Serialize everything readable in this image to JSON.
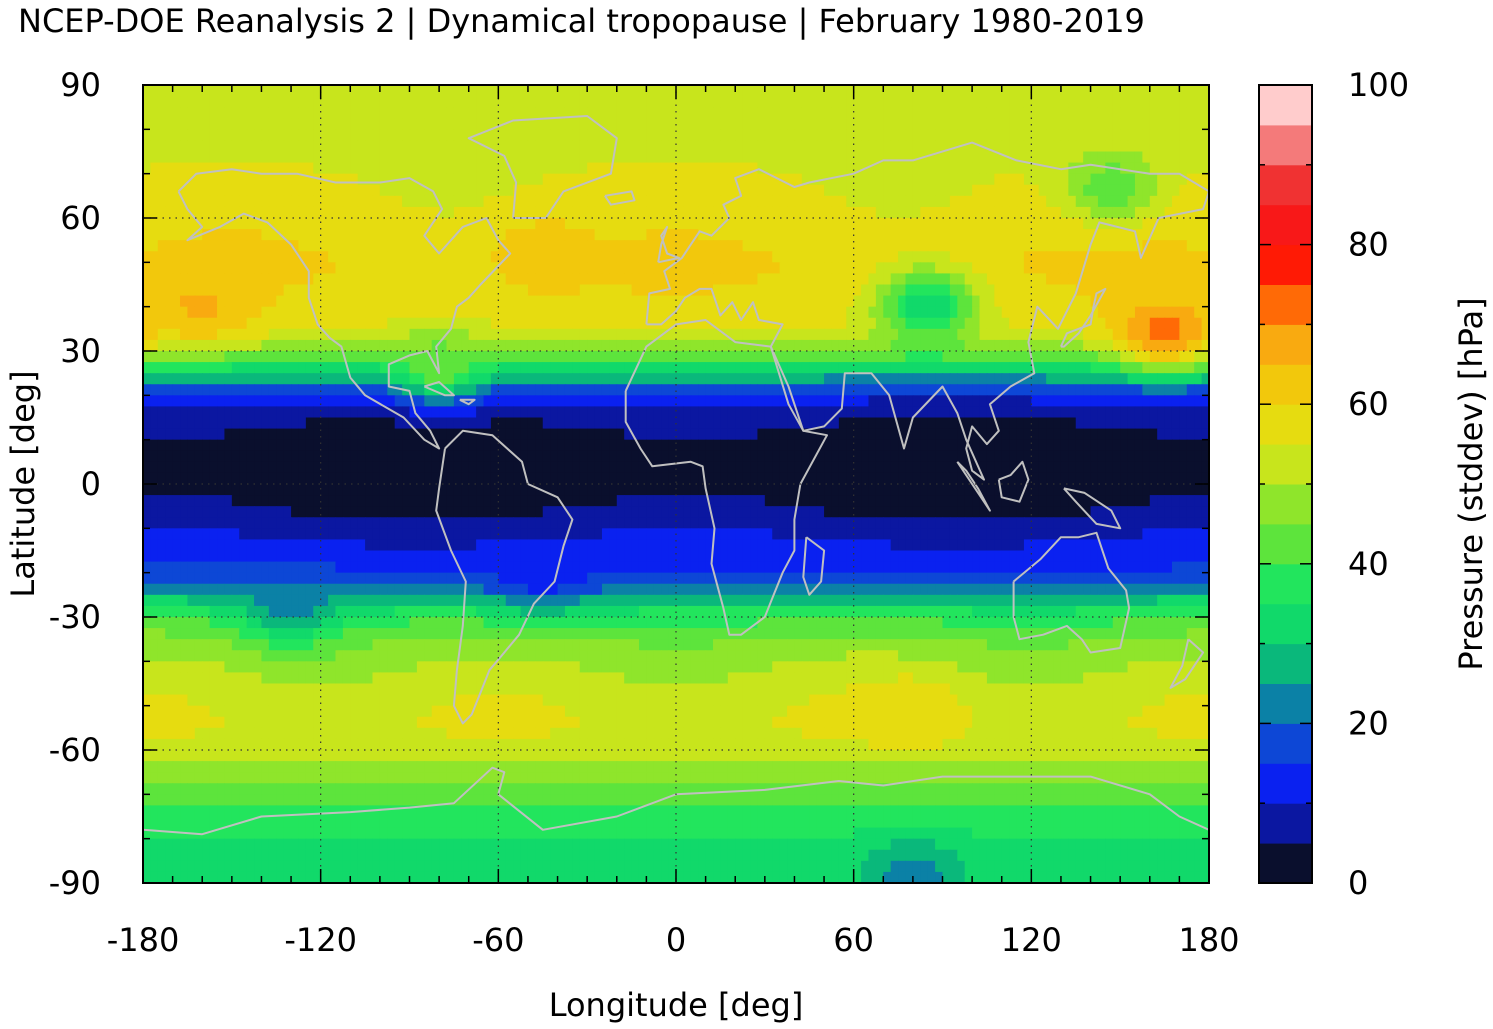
{
  "chart_data": {
    "type": "heatmap",
    "title": "NCEP-DOE Reanalysis 2 | Dynamical tropopause | February 1980-2019",
    "xlabel": "Longitude [deg]",
    "ylabel": "Latitude [deg]",
    "colorbar_label": "Pressure (stddev) [hPa]",
    "xlim": [
      -180,
      180
    ],
    "ylim": [
      -90,
      90
    ],
    "x_ticks": [
      -180,
      -120,
      -60,
      0,
      60,
      120,
      180
    ],
    "x_tick_labels": [
      "-180",
      "-120",
      "-60",
      "0",
      "60",
      "120",
      "180"
    ],
    "y_ticks": [
      90,
      60,
      30,
      0,
      -30,
      -60,
      -90
    ],
    "y_tick_labels": [
      "90",
      "60",
      "30",
      "0",
      "-30",
      "-60",
      "-90"
    ],
    "colorbar_ticks": [
      100,
      80,
      60,
      40,
      20,
      0
    ],
    "colorbar_tick_labels": [
      "100",
      "80",
      "60",
      "40",
      "20",
      "0"
    ],
    "colorbar_range": [
      0,
      100
    ],
    "grid": true,
    "coastlines": true,
    "coastline_color": "#c0c0c0",
    "colorscale": [
      {
        "from": 0,
        "to": 5,
        "color": "#0a0f2d"
      },
      {
        "from": 5,
        "to": 10,
        "color": "#0b17a1"
      },
      {
        "from": 10,
        "to": 15,
        "color": "#0a21f0"
      },
      {
        "from": 15,
        "to": 20,
        "color": "#0d47d6"
      },
      {
        "from": 20,
        "to": 25,
        "color": "#0b81a6"
      },
      {
        "from": 25,
        "to": 30,
        "color": "#0ab87b"
      },
      {
        "from": 30,
        "to": 35,
        "color": "#11d96a"
      },
      {
        "from": 35,
        "to": 40,
        "color": "#22e55d"
      },
      {
        "from": 40,
        "to": 45,
        "color": "#5de43c"
      },
      {
        "from": 45,
        "to": 50,
        "color": "#8fe52b"
      },
      {
        "from": 50,
        "to": 55,
        "color": "#c8e51c"
      },
      {
        "from": 55,
        "to": 60,
        "color": "#e6dc10"
      },
      {
        "from": 60,
        "to": 65,
        "color": "#f2c80c"
      },
      {
        "from": 65,
        "to": 70,
        "color": "#f9aa10"
      },
      {
        "from": 70,
        "to": 75,
        "color": "#ff6a06"
      },
      {
        "from": 75,
        "to": 80,
        "color": "#ff1a05"
      },
      {
        "from": 80,
        "to": 85,
        "color": "#f81818"
      },
      {
        "from": 85,
        "to": 90,
        "color": "#f03232"
      },
      {
        "from": 90,
        "to": 95,
        "color": "#f47a7a"
      },
      {
        "from": 95,
        "to": 100,
        "color": "#ffcccc"
      }
    ],
    "zonal_mean_profile": {
      "latitudes": [
        90,
        80,
        70,
        60,
        50,
        40,
        35,
        30,
        27,
        24,
        21,
        18,
        15,
        10,
        5,
        0,
        -5,
        -10,
        -15,
        -20,
        -24,
        -27,
        -30,
        -33,
        -36,
        -40,
        -45,
        -50,
        -55,
        -60,
        -65,
        -70,
        -75,
        -80,
        -85,
        -90
      ],
      "values": [
        50,
        52,
        55,
        57,
        60,
        58,
        56,
        46,
        36,
        26,
        15,
        9,
        6,
        3,
        2,
        2,
        4,
        8,
        12,
        15,
        22,
        32,
        38,
        43,
        46,
        49,
        52,
        54,
        55,
        52,
        47,
        42,
        38,
        35,
        34,
        33
      ]
    },
    "regional_anomalies": [
      {
        "lon": 85,
        "lat": 40,
        "value": 30
      },
      {
        "lon": 147,
        "lat": 67,
        "value": 41
      },
      {
        "lon": -45,
        "lat": 52,
        "value": 64
      },
      {
        "lon": -160,
        "lat": 40,
        "value": 66
      },
      {
        "lon": -130,
        "lat": -27,
        "value": 22
      },
      {
        "lon": 80,
        "lat": -52,
        "value": 60
      },
      {
        "lon": 80,
        "lat": -88,
        "value": 22
      },
      {
        "lon": 165,
        "lat": 34,
        "value": 72
      },
      {
        "lon": -45,
        "lat": -20,
        "value": 12
      },
      {
        "lon": -80,
        "lat": 27,
        "value": 44
      }
    ]
  }
}
